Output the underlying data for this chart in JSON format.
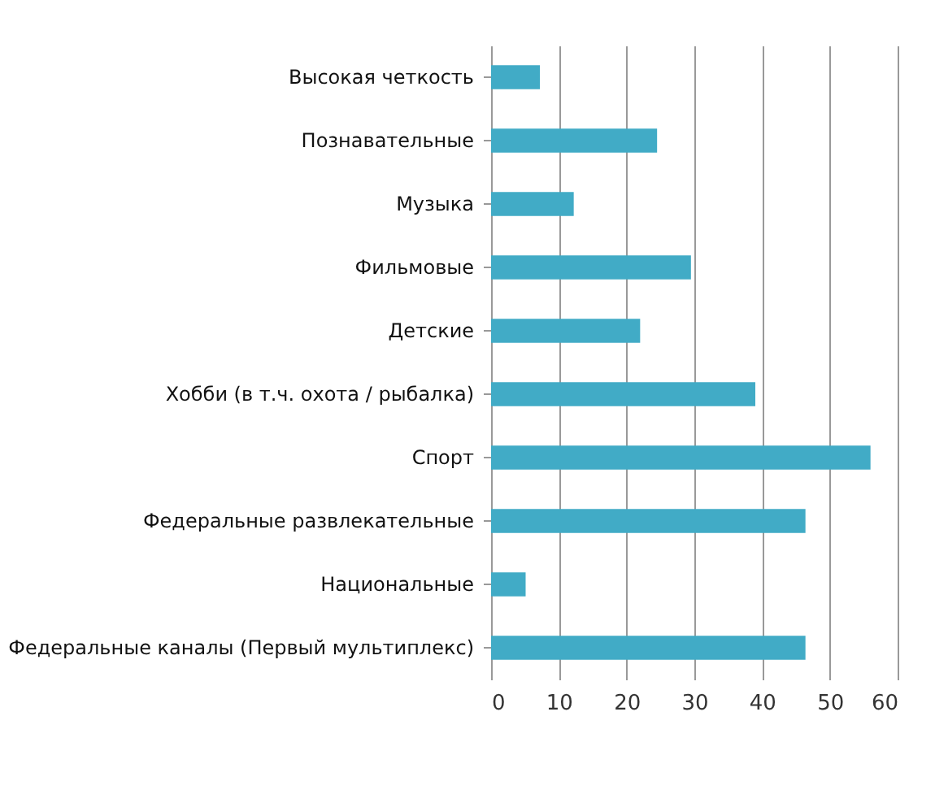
{
  "chart_data": {
    "type": "bar",
    "orientation": "horizontal",
    "categories": [
      "Высокая четкость",
      "Познавательные",
      "Музыка",
      "Фильмовые",
      "Детские",
      "Хобби (в т.ч. охота / рыбалка)",
      "Спорт",
      "Федеральные развлекательные",
      "Национальные",
      "Федеральные каналы (Первый мультиплекс)"
    ],
    "values": [
      7.2,
      24.5,
      12.2,
      29.5,
      22,
      39,
      56,
      46.4,
      5.1,
      46.4
    ],
    "color": "#41abc6",
    "xlim": [
      0,
      60
    ],
    "xticks": [
      0,
      10,
      20,
      30,
      40,
      50,
      60
    ],
    "grid": "x"
  }
}
